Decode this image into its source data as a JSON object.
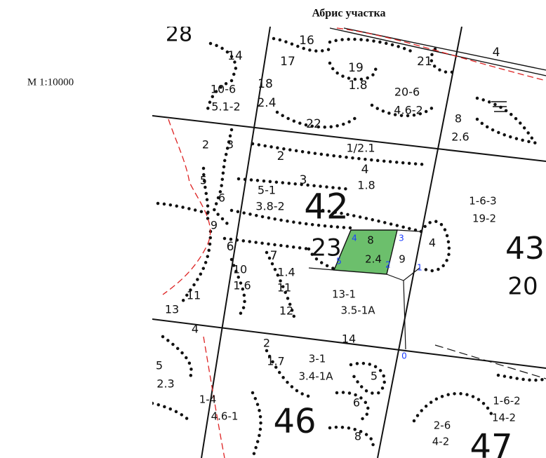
{
  "title": "Абрис участка",
  "scale": "М 1:10000",
  "labels": [
    "28",
    "14",
    "16",
    "17",
    "19",
    "21",
    "4",
    "18",
    "2.4",
    "10-6",
    "5.1-2",
    "1.8",
    "20-6",
    "4.6-2",
    "22",
    "8",
    "2.6",
    "2",
    "3",
    "2",
    "1/2.1",
    "4",
    "1.8",
    "3",
    "5",
    "5-1",
    "3.8-2",
    "6",
    "9",
    "42",
    "23",
    "4",
    "8",
    "3",
    "2.4",
    "9",
    "4",
    "5",
    "2",
    "1",
    "1-6-3",
    "19-2",
    "43",
    "20",
    "6",
    "7",
    "10",
    "1.4",
    "1.6",
    "11",
    "12",
    "11",
    "13-1",
    "3.5-1А",
    "13",
    "14",
    "0",
    "4",
    "2",
    "1.7",
    "3-1",
    "3.4-1А",
    "5",
    "5",
    "2.3",
    "6",
    "1-4",
    "4.6-1",
    "46",
    "8",
    "1-6-2",
    "14-2",
    "2-6",
    "4-2",
    "47"
  ]
}
